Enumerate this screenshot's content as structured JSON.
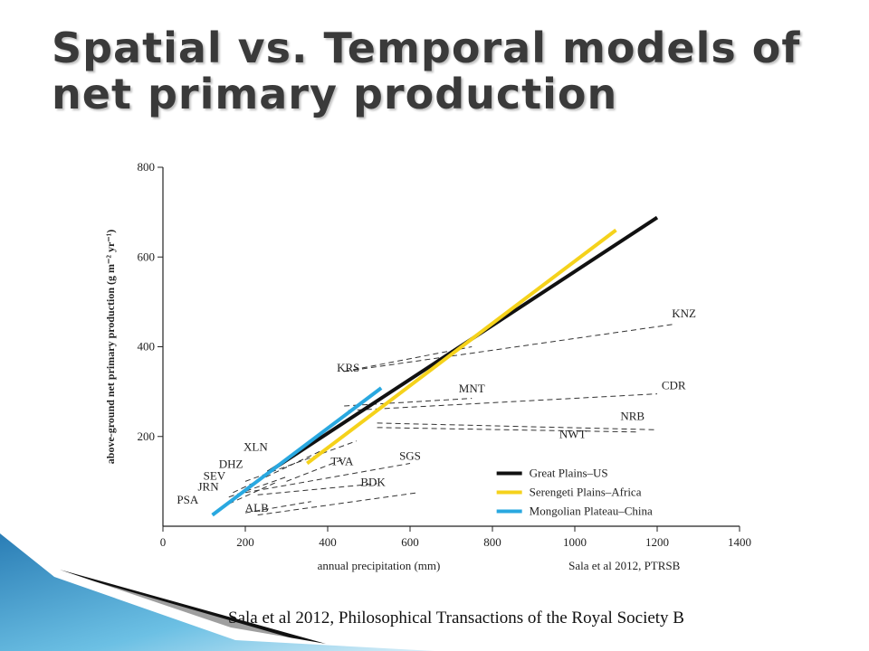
{
  "slide": {
    "title": "Spatial vs. Temporal models of net primary production",
    "footer_citation": "Sala et al 2012, Philosophical Transactions of the Royal Society B"
  },
  "chart_data": {
    "type": "line",
    "xlabel": "annual precipitation (mm)",
    "ylabel": "above-ground net primary production (g m⁻² yr⁻¹)",
    "xlim": [
      0,
      1400
    ],
    "ylim": [
      0,
      800
    ],
    "xticks": [
      0,
      200,
      400,
      600,
      800,
      1000,
      1200,
      1400
    ],
    "yticks": [
      200,
      400,
      600,
      800
    ],
    "grid": false,
    "legend_position": "bottom-right",
    "source_note": "Sala et al 2012, PTRSB",
    "series": [
      {
        "name": "Great Plains–US",
        "style": "solid",
        "color": "#111111",
        "x": [
          255,
          1200
        ],
        "y": [
          120,
          688
        ]
      },
      {
        "name": "Serengeti Plains–Africa",
        "style": "solid",
        "color": "#f5d21b",
        "x": [
          350,
          1100
        ],
        "y": [
          140,
          660
        ]
      },
      {
        "name": "Mongolian Plateau–China",
        "style": "solid",
        "color": "#29a8e0",
        "x": [
          120,
          530
        ],
        "y": [
          25,
          308
        ]
      }
    ],
    "site_lines": [
      {
        "label": "KNZ",
        "x": [
          440,
          1240
        ],
        "y": [
          345,
          450
        ]
      },
      {
        "label": "KRS",
        "x": [
          440,
          750
        ],
        "y": [
          345,
          400
        ]
      },
      {
        "label": "MNT",
        "x": [
          440,
          750
        ],
        "y": [
          268,
          285
        ]
      },
      {
        "label": "CDR",
        "x": [
          450,
          1200
        ],
        "y": [
          258,
          295
        ]
      },
      {
        "label": "NRB",
        "x": [
          520,
          1200
        ],
        "y": [
          230,
          215
        ]
      },
      {
        "label": "NWT",
        "x": [
          520,
          1150
        ],
        "y": [
          220,
          210
        ]
      },
      {
        "label": "SGS",
        "x": [
          200,
          600
        ],
        "y": [
          75,
          140
        ]
      },
      {
        "label": "BDK",
        "x": [
          230,
          520
        ],
        "y": [
          70,
          95
        ]
      },
      {
        "label": "TVA",
        "x": [
          300,
          440
        ],
        "y": [
          100,
          150
        ]
      },
      {
        "label": "XLN",
        "x": [
          200,
          470
        ],
        "y": [
          100,
          190
        ]
      },
      {
        "label": "DHZ",
        "x": [
          170,
          400
        ],
        "y": [
          75,
          175
        ]
      },
      {
        "label": "SEV",
        "x": [
          160,
          300
        ],
        "y": [
          65,
          110
        ]
      },
      {
        "label": "JRN",
        "x": [
          160,
          280
        ],
        "y": [
          50,
          100
        ]
      },
      {
        "label": "PSA",
        "x": [
          200,
          360
        ],
        "y": [
          30,
          55
        ]
      },
      {
        "label": "ALB",
        "x": [
          230,
          620
        ],
        "y": [
          25,
          75
        ]
      }
    ],
    "site_labels": [
      {
        "text": "KNZ",
        "x": 1265,
        "y": 465
      },
      {
        "text": "KRS",
        "x": 450,
        "y": 345
      },
      {
        "text": "MNT",
        "x": 750,
        "y": 298
      },
      {
        "text": "CDR",
        "x": 1240,
        "y": 305
      },
      {
        "text": "NRB",
        "x": 1140,
        "y": 237
      },
      {
        "text": "NWT",
        "x": 995,
        "y": 196
      },
      {
        "text": "SGS",
        "x": 600,
        "y": 148
      },
      {
        "text": "BDK",
        "x": 510,
        "y": 90
      },
      {
        "text": "TVA",
        "x": 435,
        "y": 136
      },
      {
        "text": "XLN",
        "x": 225,
        "y": 168
      },
      {
        "text": "DHZ",
        "x": 165,
        "y": 130
      },
      {
        "text": "SEV",
        "x": 125,
        "y": 104
      },
      {
        "text": "JRN",
        "x": 110,
        "y": 80
      },
      {
        "text": "PSA",
        "x": 60,
        "y": 50
      },
      {
        "text": "ALB",
        "x": 228,
        "y": 32
      }
    ]
  }
}
